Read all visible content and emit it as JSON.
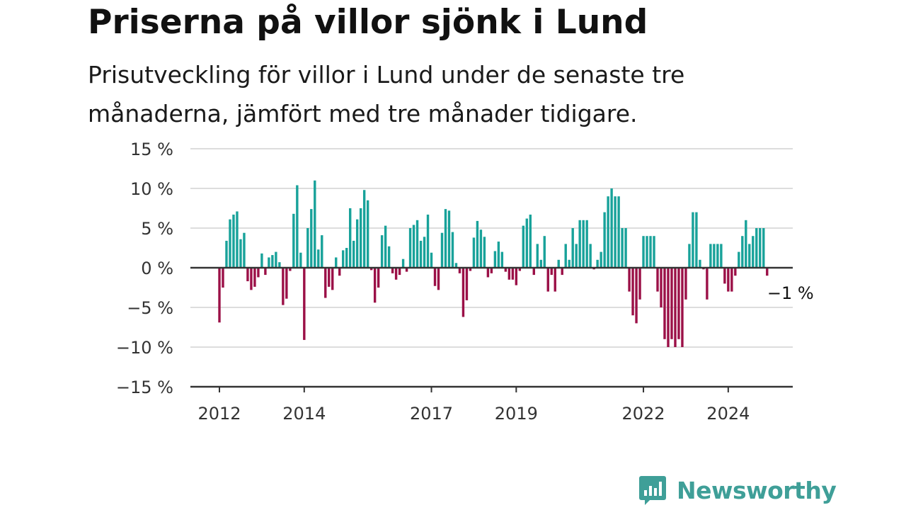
{
  "colors": {
    "positive": "#18a29a",
    "negative": "#9b1047",
    "grid": "#dddddd",
    "axis": "#333333",
    "brand": "#3f9f98"
  },
  "brand": {
    "name": "Newsworthy",
    "icon": "bar-chart-icon"
  },
  "chart_data": {
    "type": "bar",
    "title": "Priserna på villor sjönk i Lund",
    "subtitle": "Prisutveckling för villor i Lund under de senaste tre månaderna, jämfört med tre månader tidigare.",
    "ylim": [
      -15,
      15
    ],
    "y_ticks": [
      15,
      10,
      5,
      0,
      -5,
      -10,
      -15
    ],
    "y_tick_labels": [
      "15 %",
      "10 %",
      "5 %",
      "0 %",
      "−5 %",
      "−10 %",
      "−15 %"
    ],
    "x_tick_labels": [
      "2012",
      "2014",
      "2017",
      "2019",
      "2022",
      "2024"
    ],
    "x_tick_dates": [
      "2012-01",
      "2014-01",
      "2017-01",
      "2019-01",
      "2022-01",
      "2024-01"
    ],
    "grid": true,
    "legend": "none",
    "end_label": "−1 %",
    "start": "2012-01",
    "frequency": "monthly",
    "values": [
      -6.9,
      -2.5,
      3.4,
      6.1,
      6.7,
      7.1,
      3.6,
      4.4,
      -1.7,
      -2.8,
      -2.4,
      -1.2,
      1.8,
      -0.9,
      1.3,
      1.6,
      2.0,
      0.7,
      -4.7,
      -3.9,
      -0.4,
      6.8,
      10.4,
      1.9,
      -9.1,
      5.0,
      7.4,
      11.0,
      2.3,
      4.1,
      -3.8,
      -2.4,
      -2.8,
      1.3,
      -1.0,
      2.2,
      2.5,
      7.5,
      3.4,
      6.1,
      7.5,
      9.8,
      8.5,
      -0.3,
      -4.4,
      -2.5,
      4.1,
      5.3,
      2.7,
      -0.7,
      -1.5,
      -0.9,
      1.1,
      -0.5,
      5.0,
      5.4,
      6.0,
      3.4,
      3.9,
      6.7,
      1.9,
      -2.3,
      -2.8,
      4.4,
      7.4,
      7.2,
      4.5,
      0.6,
      -0.7,
      -6.2,
      -4.1,
      -0.4,
      3.8,
      5.9,
      4.8,
      3.9,
      -1.2,
      -0.7,
      2.1,
      3.3,
      2.0,
      -0.5,
      -1.5,
      -1.5,
      -2.2,
      -0.4,
      5.3,
      6.2,
      6.7,
      -0.9,
      3.0,
      1.0,
      4.0,
      -3.0,
      -0.9,
      -3.0,
      1.0,
      -0.9,
      3.0,
      1.0,
      5.0,
      3.0,
      6.0,
      6.0,
      6.0,
      3.0,
      -0.2,
      1.0,
      2.0,
      7.0,
      9.0,
      10.0,
      9.0,
      9.0,
      5.0,
      5.0,
      -3.0,
      -6.0,
      -7.0,
      -4.0,
      4.0,
      4.0,
      4.0,
      4.0,
      -3.0,
      -5.0,
      -9.0,
      -10.0,
      -9.0,
      -10.0,
      -9.0,
      -10.0,
      -4.0,
      3.0,
      7.0,
      7.0,
      1.0,
      -0.2,
      -4.0,
      3.0,
      3.0,
      3.0,
      3.0,
      -2.0,
      -3.0,
      -3.0,
      -1.0,
      2.0,
      4.0,
      6.0,
      3.0,
      4.0,
      5.0,
      5.0,
      5.0,
      -1.0
    ]
  }
}
